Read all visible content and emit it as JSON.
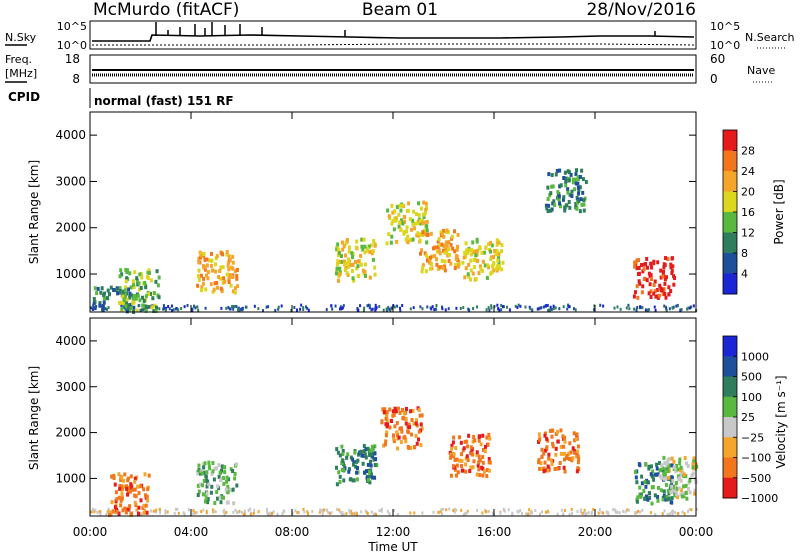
{
  "header": {
    "station": "McMurdo (fitACF)",
    "beam": "Beam 01",
    "date": "28/Nov/2016"
  },
  "strip": {
    "nsky_label": "N.Sky",
    "nsearch_label": "N.Search",
    "nsky_ticks": [
      "10^5",
      "10^0"
    ],
    "nsearch_ticks": [
      "10^5",
      "10^0"
    ],
    "freq_label_line1": "Freq.",
    "freq_label_line2": "[MHz]",
    "freq_ticks": [
      "18",
      "8"
    ],
    "nave_label": "Nave",
    "nave_ticks": [
      "60",
      "0"
    ],
    "cpid_label": "CPID",
    "cpid_text": "normal (fast) 151 RF"
  },
  "chart_data": [
    {
      "type": "heatmap",
      "panel": "power",
      "ylabel": "Slant Range [km]",
      "ylim": [
        180,
        4500
      ],
      "y_ticks": [
        1000,
        2000,
        3000,
        4000
      ],
      "colorbar_label": "Power [dB]",
      "colorbar_ticks": [
        "28",
        "24",
        "20",
        "16",
        "12",
        "8",
        "4"
      ],
      "colorbar_colors": [
        "#e51b1b",
        "#f2761c",
        "#f4a52a",
        "#dcd61f",
        "#59b83f",
        "#2e7d5d",
        "#1e4f9d",
        "#1a25d6"
      ],
      "echo_regions": [
        {
          "t_hours": 0.9,
          "range_km": 300,
          "level_db": 10
        },
        {
          "t_hours": 1.9,
          "range_km": 650,
          "level_db": 14
        },
        {
          "t_hours": 5.0,
          "range_km": 1050,
          "level_db": 20
        },
        {
          "t_hours": 10.5,
          "range_km": 1300,
          "level_db": 16
        },
        {
          "t_hours": 12.5,
          "range_km": 2100,
          "level_db": 18
        },
        {
          "t_hours": 13.8,
          "range_km": 1500,
          "level_db": 20
        },
        {
          "t_hours": 15.5,
          "range_km": 1300,
          "level_db": 16
        },
        {
          "t_hours": 18.8,
          "range_km": 2800,
          "level_db": 10
        },
        {
          "t_hours": 22.3,
          "range_km": 900,
          "level_db": 28
        }
      ]
    },
    {
      "type": "heatmap",
      "panel": "velocity",
      "xlabel": "Time UT",
      "ylabel": "Slant Range [km]",
      "ylim": [
        180,
        4500
      ],
      "y_ticks": [
        1000,
        2000,
        3000,
        4000
      ],
      "x_ticks": [
        "00:00",
        "04:00",
        "08:00",
        "12:00",
        "16:00",
        "20:00",
        "00:00"
      ],
      "colorbar_label": "Velocity [m s⁻¹]",
      "colorbar_ticks": [
        "1000",
        "500",
        "100",
        "25",
        "−25",
        "−100",
        "−500",
        "−1000"
      ],
      "colorbar_colors": [
        "#1a25d6",
        "#1e4f9d",
        "#2e7d5d",
        "#59b83f",
        "#c8c8c8",
        "#f4a52a",
        "#f2761c",
        "#e51b1b"
      ],
      "echo_regions": [
        {
          "t_hours": 1.5,
          "range_km": 650,
          "velocity_ms": -300
        },
        {
          "t_hours": 5.0,
          "range_km": 900,
          "velocity_ms": 80
        },
        {
          "t_hours": 10.5,
          "range_km": 1300,
          "velocity_ms": 300
        },
        {
          "t_hours": 12.3,
          "range_km": 2100,
          "velocity_ms": -300
        },
        {
          "t_hours": 15.0,
          "range_km": 1500,
          "velocity_ms": -300
        },
        {
          "t_hours": 18.5,
          "range_km": 1600,
          "velocity_ms": -300
        },
        {
          "t_hours": 22.3,
          "range_km": 900,
          "velocity_ms": 300
        },
        {
          "t_hours": 23.3,
          "range_km": 1000,
          "velocity_ms": 0
        }
      ]
    }
  ]
}
